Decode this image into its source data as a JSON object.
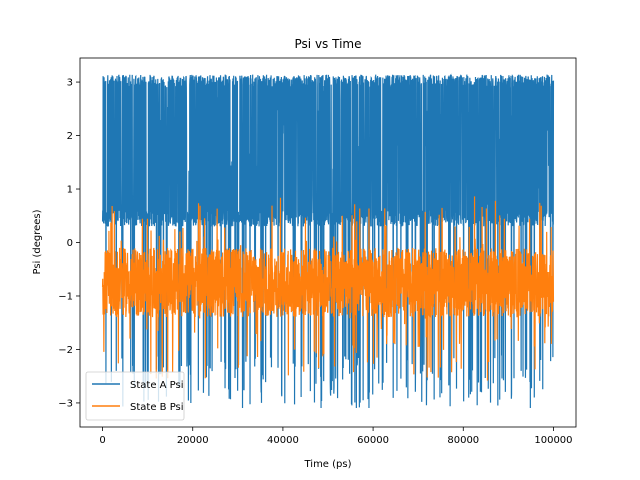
{
  "chart_data": {
    "type": "line",
    "title": "Psi vs Time",
    "xlabel": "Time (ps)",
    "ylabel": "Psi (degrees)",
    "xlim": [
      -5000,
      105000
    ],
    "ylim": [
      -3.45,
      3.45
    ],
    "x_ticks": [
      0,
      20000,
      40000,
      60000,
      80000,
      100000
    ],
    "x_tick_labels": [
      "0",
      "20000",
      "40000",
      "60000",
      "80000",
      "100000"
    ],
    "y_ticks": [
      -3,
      -2,
      -1,
      0,
      1,
      2,
      3
    ],
    "y_tick_labels": [
      "−3",
      "−2",
      "−1",
      "0",
      "1",
      "2",
      "3"
    ],
    "grid": false,
    "legend_position": "lower-left",
    "series": [
      {
        "name": "State A Psi",
        "color": "#1f77b4",
        "x_range": [
          0,
          100000
        ],
        "typical_high": [
          2.9,
          3.14
        ],
        "typical_low": [
          0.3,
          0.6
        ],
        "occasional_dips_to": -3.1,
        "description_values": {
          "max": 3.14,
          "min": -3.14
        }
      },
      {
        "name": "State B Psi",
        "color": "#ff7f0e",
        "x_range": [
          0,
          100000
        ],
        "band": [
          -1.4,
          -0.1
        ],
        "center": -0.7,
        "spike_max": 0.87,
        "spike_min": -2.6
      }
    ]
  }
}
